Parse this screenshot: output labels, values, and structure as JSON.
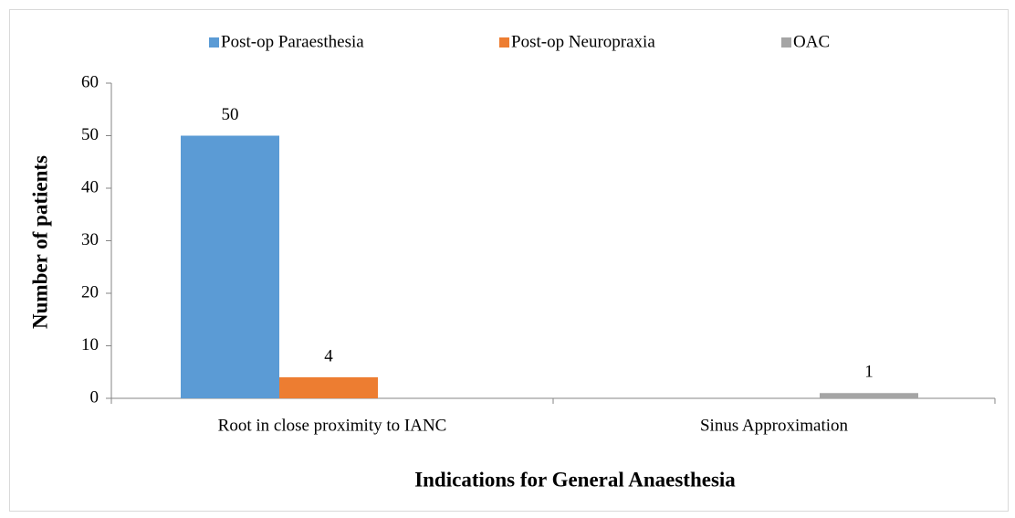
{
  "chart_data": {
    "type": "bar",
    "categories": [
      "Root in close proximity to IANC",
      "Sinus Approximation"
    ],
    "series": [
      {
        "name": "Post-op Paraesthesia",
        "color": "#5b9bd5",
        "values": [
          50,
          null
        ]
      },
      {
        "name": "Post-op Neuropraxia",
        "color": "#ed7d31",
        "values": [
          4,
          null
        ]
      },
      {
        "name": "OAC",
        "color": "#a5a5a5",
        "values": [
          null,
          1
        ]
      }
    ],
    "ylabel": "Number of patients",
    "xlabel": "Indications for General Anaesthesia",
    "ylim": [
      0,
      60
    ],
    "yticks": [
      0,
      10,
      20,
      30,
      40,
      50,
      60
    ],
    "legend": "top",
    "grid": false
  }
}
